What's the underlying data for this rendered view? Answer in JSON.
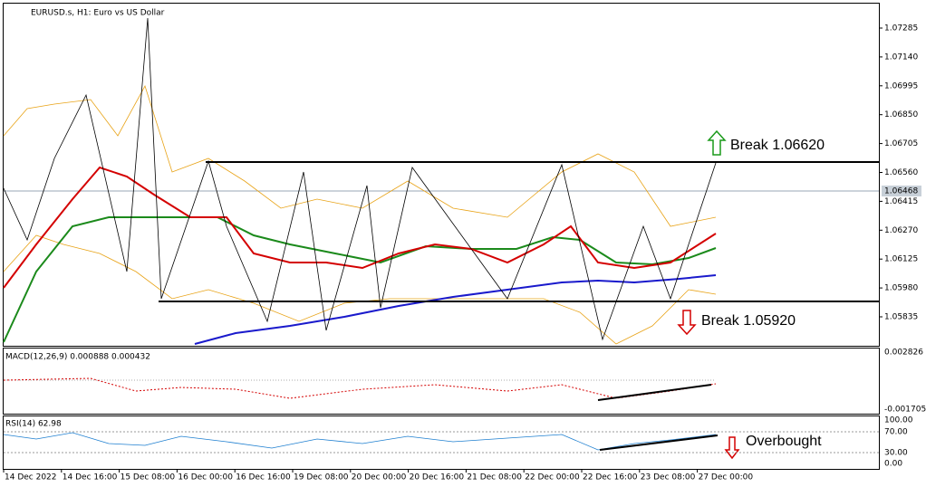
{
  "header": {
    "title": "EURUSD.s, H1:  Euro vs US Dollar"
  },
  "price_axis": [
    "1.07285",
    "1.07140",
    "1.06995",
    "1.06850",
    "1.06705",
    "1.06560",
    "1.06415",
    "1.06270",
    "1.06125",
    "1.05980",
    "1.05835"
  ],
  "current_price": "1.06468",
  "annotations": {
    "break_up": "Break 1.06620",
    "break_down": "Break 1.05920",
    "overbought": "Overbought"
  },
  "macd": {
    "label": "MACD(12,26,9) 0.000888 0.000432",
    "axis": [
      "0.002826",
      "-0.001705"
    ]
  },
  "rsi": {
    "label": "RSI(14) 62.98",
    "axis": [
      "100.00",
      "70.00",
      "30.00",
      "0.00"
    ]
  },
  "date_axis": [
    "14 Dec 2022",
    "14 Dec 16:00",
    "15 Dec 08:00",
    "16 Dec 00:00",
    "16 Dec 16:00",
    "19 Dec 08:00",
    "20 Dec 00:00",
    "20 Dec 16:00",
    "21 Dec 08:00",
    "22 Dec 00:00",
    "22 Dec 16:00",
    "23 Dec 08:00",
    "27 Dec 00:00"
  ]
}
